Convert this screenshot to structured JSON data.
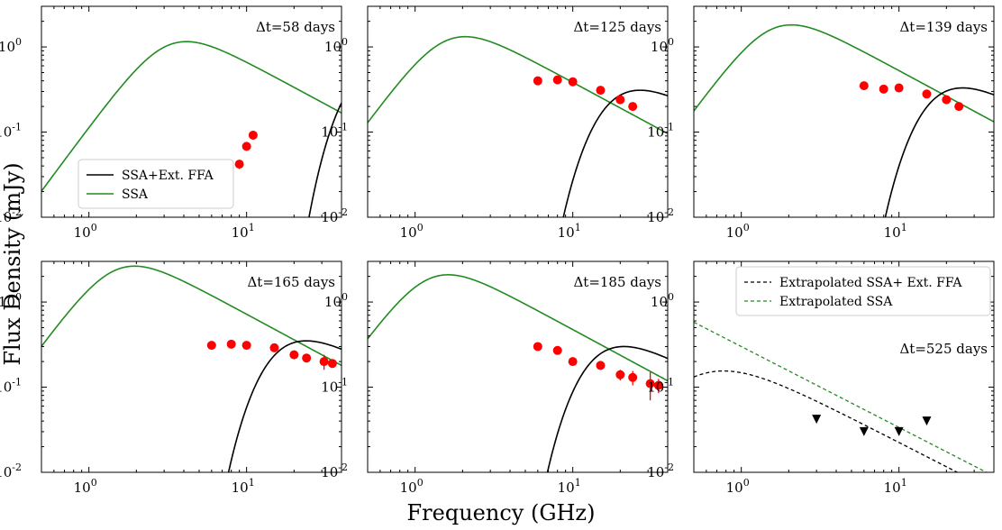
{
  "figure": {
    "xlabel": "Frequency (GHz)",
    "ylabel": "Flux Density (mJy)"
  },
  "colors": {
    "ssa_ffa": "#000000",
    "ssa": "#228B22",
    "points": "#ff0000",
    "upper_limits": "#000000"
  },
  "chart_data": [
    {
      "type": "line",
      "panel": 1,
      "annotation": "Δt=58 days",
      "xscale": "log",
      "yscale": "log",
      "xlim": [
        0.5,
        40
      ],
      "ylim": [
        0.01,
        3
      ],
      "legend": [
        "SSA+Ext. FFA",
        "SSA"
      ],
      "legend_position": "lower-left",
      "model": {
        "ssa_peak_nu": 3.2,
        "ssa_peak_flux": 1.05,
        "ffa_peak_nu": 26,
        "ffa_peak_flux": 0.22,
        "ffa_tau_ref": 0.43
      },
      "points": {
        "x": [
          9.0,
          10.0,
          11.0
        ],
        "y": [
          0.042,
          0.068,
          0.092
        ],
        "err": [
          0.005,
          0.006,
          0.007
        ]
      }
    },
    {
      "type": "line",
      "panel": 2,
      "annotation": "Δt=125 days",
      "xscale": "log",
      "yscale": "log",
      "xlim": [
        0.5,
        40
      ],
      "ylim": [
        0.01,
        3
      ],
      "model": {
        "ssa_peak_nu": 1.6,
        "ssa_peak_flux": 1.2,
        "ffa_peak_nu": 9.5,
        "ffa_peak_flux": 0.31,
        "ffa_tau_ref": 0.3
      },
      "points": {
        "x": [
          6.0,
          8.0,
          10.0,
          15.0,
          20.0,
          24.0
        ],
        "y": [
          0.4,
          0.41,
          0.39,
          0.31,
          0.24,
          0.2
        ],
        "err": [
          0.02,
          0.02,
          0.02,
          0.02,
          0.015,
          0.015
        ]
      }
    },
    {
      "type": "line",
      "panel": 3,
      "annotation": "Δt=139 days",
      "xscale": "log",
      "yscale": "log",
      "xlim": [
        0.5,
        40
      ],
      "ylim": [
        0.01,
        3
      ],
      "model": {
        "ssa_peak_nu": 1.6,
        "ssa_peak_flux": 1.65,
        "ffa_peak_nu": 9.0,
        "ffa_peak_flux": 0.33,
        "ffa_tau_ref": 0.3
      },
      "points": {
        "x": [
          6.0,
          8.0,
          10.0,
          15.0,
          20.0,
          24.0
        ],
        "y": [
          0.35,
          0.32,
          0.33,
          0.28,
          0.24,
          0.2
        ],
        "err": [
          0.02,
          0.02,
          0.02,
          0.02,
          0.015,
          0.015
        ]
      }
    },
    {
      "type": "line",
      "panel": 4,
      "annotation": "Δt=165 days",
      "xscale": "log",
      "yscale": "log",
      "xlim": [
        0.5,
        40
      ],
      "ylim": [
        0.01,
        3
      ],
      "model": {
        "ssa_peak_nu": 1.5,
        "ssa_peak_flux": 2.4,
        "ffa_peak_nu": 8.5,
        "ffa_peak_flux": 0.35,
        "ffa_tau_ref": 0.3
      },
      "points": {
        "x": [
          6.0,
          8.0,
          10.0,
          15.0,
          20.0,
          24.0,
          31.0,
          35.0
        ],
        "y": [
          0.31,
          0.32,
          0.31,
          0.29,
          0.24,
          0.22,
          0.2,
          0.19
        ],
        "err": [
          0.02,
          0.02,
          0.02,
          0.02,
          0.02,
          0.02,
          0.04,
          0.02
        ]
      }
    },
    {
      "type": "line",
      "panel": 5,
      "annotation": "Δt=185 days",
      "xscale": "log",
      "yscale": "log",
      "xlim": [
        0.5,
        40
      ],
      "ylim": [
        0.01,
        3
      ],
      "model": {
        "ssa_peak_nu": 1.25,
        "ssa_peak_flux": 1.9,
        "ffa_peak_nu": 7.5,
        "ffa_peak_flux": 0.3,
        "ffa_tau_ref": 0.3
      },
      "points": {
        "x": [
          6.0,
          8.0,
          10.0,
          15.0,
          20.0,
          24.0,
          31.0,
          35.0
        ],
        "y": [
          0.3,
          0.27,
          0.2,
          0.18,
          0.14,
          0.13,
          0.11,
          0.105
        ],
        "err": [
          0.02,
          0.02,
          0.02,
          0.02,
          0.02,
          0.025,
          0.04,
          0.02
        ]
      }
    },
    {
      "type": "line",
      "panel": 6,
      "annotation": "Δt=525 days",
      "xscale": "log",
      "yscale": "log",
      "xlim": [
        0.5,
        40
      ],
      "ylim": [
        0.01,
        3
      ],
      "legend": [
        "Extrapolated SSA+ Ext. FFA",
        "Extrapolated SSA"
      ],
      "legend_position": "upper-right",
      "model": {
        "extrap_flux_at_1": 0.3,
        "extrap_slope": -0.95,
        "ffa_peak_nu": 1.6,
        "ffa_peak_flux": 0.155,
        "ffa_tau_ref": 0.3
      },
      "upper_limits": {
        "x": [
          3.0,
          6.0,
          10.0,
          15.0
        ],
        "y": [
          0.042,
          0.03,
          0.03,
          0.04
        ]
      }
    }
  ]
}
